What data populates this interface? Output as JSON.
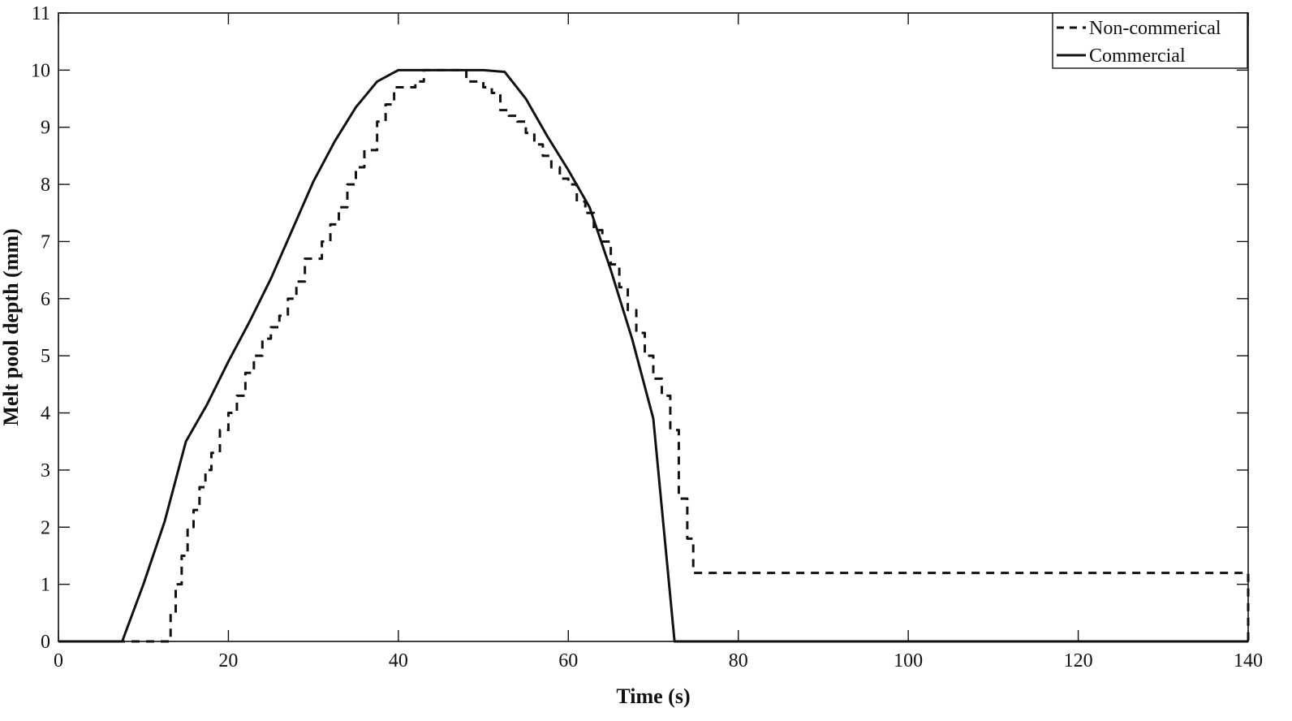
{
  "chart_data": {
    "type": "line",
    "title": "",
    "xlabel": "Time  (s)",
    "ylabel": "Melt pool depth  (mm)",
    "xlim": [
      0,
      140
    ],
    "ylim": [
      0,
      11
    ],
    "xticks": [
      0,
      20,
      40,
      60,
      80,
      100,
      120,
      140
    ],
    "yticks": [
      0,
      1,
      2,
      3,
      4,
      5,
      6,
      7,
      8,
      9,
      10,
      11
    ],
    "grid": false,
    "legend_position": "top-right",
    "series": [
      {
        "name": "Non-commerical",
        "style": "dashed",
        "color": "#111111",
        "step": true,
        "x": [
          0,
          12.5,
          13.2,
          13.8,
          14.5,
          15.2,
          15.9,
          16.6,
          17.3,
          18.0,
          19.0,
          20.0,
          21.0,
          22.0,
          23.0,
          24.0,
          25.0,
          26.0,
          27.0,
          28.0,
          29.0,
          30.0,
          31.0,
          32.0,
          33.0,
          34.0,
          35.0,
          36.0,
          37.5,
          38.5,
          39.5,
          40.5,
          42.0,
          43.0,
          44.0,
          45.0,
          46.0,
          47.0,
          48.0,
          49.0,
          50.0,
          51.0,
          52.0,
          53.0,
          54.0,
          55.0,
          56.0,
          57.0,
          58.0,
          59.0,
          60.0,
          61.0,
          62.0,
          63.0,
          64.0,
          65.0,
          66.0,
          67.0,
          68.0,
          69.0,
          70.0,
          71.0,
          72.0,
          73.0,
          74.0,
          74.7,
          140
        ],
        "y": [
          0,
          0,
          0.5,
          1.0,
          1.5,
          2.0,
          2.3,
          2.7,
          3.0,
          3.3,
          3.7,
          4.0,
          4.3,
          4.7,
          5.0,
          5.3,
          5.5,
          5.7,
          6.0,
          6.3,
          6.7,
          6.7,
          7.0,
          7.3,
          7.6,
          8.0,
          8.3,
          8.6,
          9.1,
          9.4,
          9.7,
          9.7,
          9.8,
          10.0,
          10.0,
          10.0,
          10.0,
          10.0,
          9.8,
          9.8,
          9.7,
          9.6,
          9.3,
          9.2,
          9.1,
          8.9,
          8.7,
          8.5,
          8.3,
          8.1,
          8.0,
          7.7,
          7.5,
          7.2,
          7.0,
          6.6,
          6.2,
          5.8,
          5.4,
          5.0,
          4.6,
          4.3,
          3.7,
          2.5,
          1.8,
          1.2,
          0
        ]
      },
      {
        "name": "Commercial",
        "style": "solid",
        "color": "#111111",
        "step": false,
        "x": [
          0,
          7.5,
          10,
          12.5,
          15,
          17.5,
          20,
          22.5,
          25,
          27.5,
          30,
          32.5,
          35,
          37.5,
          40,
          45,
          50,
          52.5,
          55,
          57.5,
          60,
          62.5,
          65,
          67.5,
          70,
          72.5,
          140
        ],
        "y": [
          0,
          0,
          1.0,
          2.1,
          3.5,
          4.15,
          4.9,
          5.6,
          6.35,
          7.2,
          8.05,
          8.75,
          9.35,
          9.8,
          10.0,
          10.0,
          10.0,
          9.97,
          9.5,
          8.85,
          8.25,
          7.6,
          6.5,
          5.3,
          3.9,
          0,
          0
        ]
      }
    ]
  }
}
